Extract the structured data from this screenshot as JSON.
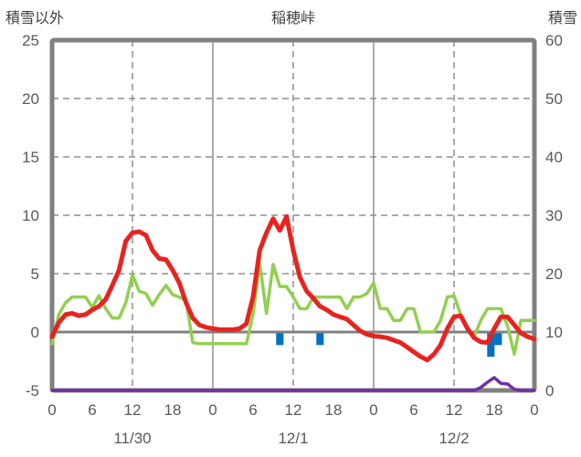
{
  "header": {
    "left_axis_title": "積雪以外",
    "chart_title": "稲穂峠",
    "right_axis_title": "積雪"
  },
  "chart_data": {
    "type": "line",
    "title": "稲穂峠",
    "station": "稲穂峠",
    "x_axis": {
      "unit": "hour",
      "start_hour": 0,
      "end_hour": 72,
      "tick_interval_hours": 6,
      "tick_labels": [
        "0",
        "6",
        "12",
        "18",
        "0",
        "6",
        "12",
        "18",
        "0",
        "6",
        "12",
        "18",
        "0"
      ],
      "day_labels": [
        {
          "label": "11/30",
          "center_hour": 12
        },
        {
          "label": "12/1",
          "center_hour": 36
        },
        {
          "label": "12/2",
          "center_hour": 60
        }
      ],
      "solid_gridline_hours": [
        24,
        48
      ],
      "dashed_gridline_hours": [
        12,
        36,
        60
      ]
    },
    "left_axis": {
      "title": "積雪以外",
      "min": -5,
      "max": 25,
      "tick_step": 5,
      "tick_labels": [
        "25",
        "20",
        "15",
        "10",
        "5",
        "0",
        "-5"
      ],
      "dashed_gridline_values": [
        20,
        15,
        10,
        5
      ],
      "zero_line_value": 0
    },
    "right_axis": {
      "title": "積雪",
      "min": 0,
      "max": 60,
      "tick_step": 10,
      "tick_labels": [
        "60",
        "50",
        "40",
        "30",
        "20",
        "10",
        "0"
      ]
    },
    "series": [
      {
        "name": "green-line",
        "axis": "left",
        "color": "#92d050",
        "width": 3.5,
        "values": [
          -1.0,
          1.5,
          2.5,
          3.0,
          3.0,
          3.0,
          2.1,
          3.1,
          2.0,
          1.2,
          1.2,
          2.5,
          4.9,
          3.5,
          3.3,
          2.3,
          3.2,
          4.0,
          3.2,
          3.0,
          2.7,
          -0.9,
          -1.0,
          -1.0,
          -1.0,
          -1.0,
          -1.0,
          -1.0,
          -1.0,
          -1.0,
          1.5,
          5.9,
          1.6,
          5.8,
          3.9,
          3.9,
          3.0,
          2.0,
          2.0,
          3.0,
          3.0,
          3.0,
          3.0,
          3.0,
          2.0,
          3.0,
          3.0,
          3.3,
          4.2,
          2.0,
          2.0,
          1.0,
          1.0,
          2.0,
          2.0,
          0.0,
          0.0,
          0.0,
          1.0,
          3.0,
          3.1,
          1.5,
          0.3,
          -0.4,
          1.0,
          2.0,
          2.0,
          2.0,
          0.5,
          -1.9,
          1.0,
          1.0,
          1.0
        ]
      },
      {
        "name": "temperature-red",
        "axis": "left",
        "color": "#e8231f",
        "width": 5,
        "values": [
          -0.4,
          0.8,
          1.5,
          1.6,
          1.4,
          1.5,
          1.9,
          2.2,
          2.8,
          4.0,
          5.3,
          7.8,
          8.5,
          8.6,
          8.3,
          7.0,
          6.3,
          6.2,
          5.3,
          4.2,
          2.5,
          1.2,
          0.6,
          0.4,
          0.3,
          0.2,
          0.2,
          0.2,
          0.3,
          0.7,
          3.0,
          7.0,
          8.5,
          9.7,
          8.7,
          9.9,
          7.0,
          4.7,
          3.5,
          2.9,
          2.2,
          1.9,
          1.5,
          1.3,
          1.1,
          0.6,
          0.1,
          -0.2,
          -0.35,
          -0.4,
          -0.5,
          -0.7,
          -0.9,
          -1.3,
          -1.7,
          -2.1,
          -2.4,
          -1.9,
          -1.1,
          0.3,
          1.3,
          1.4,
          0.3,
          -0.5,
          -0.85,
          -0.9,
          0.3,
          1.3,
          1.3,
          0.6,
          -0.1,
          -0.4,
          -0.6
        ]
      },
      {
        "name": "snow-depth-purple",
        "axis": "right",
        "color": "#7030a0",
        "width": 3.5,
        "values": [
          0,
          0,
          0,
          0,
          0,
          0,
          0,
          0,
          0,
          0,
          0,
          0,
          0,
          0,
          0,
          0,
          0,
          0,
          0,
          0,
          0,
          0,
          0,
          0,
          0,
          0,
          0,
          0,
          0,
          0,
          0,
          0,
          0,
          0,
          0,
          0,
          0,
          0,
          0,
          0,
          0,
          0,
          0,
          0,
          0,
          0,
          0,
          0,
          0,
          0,
          0,
          0,
          0,
          0,
          0,
          0,
          0,
          0,
          0,
          0,
          0,
          0,
          0,
          0,
          0.5,
          1.4,
          2.2,
          1.2,
          1.1,
          0.2,
          0,
          0,
          0
        ]
      }
    ],
    "bars": {
      "name": "precipitation-blue",
      "color": "#0070c0",
      "axis": "left",
      "baseline_value": 0,
      "direction": "down",
      "bar_width_hours": 1.1,
      "points": [
        {
          "hour": 34,
          "depth": 1
        },
        {
          "hour": 40,
          "depth": 1
        },
        {
          "hour": 65.5,
          "depth": 2
        },
        {
          "hour": 66.6,
          "depth": 1
        }
      ]
    },
    "style": {
      "border_color": "#808080",
      "grid_color": "#8f8f8f",
      "zero_line_color": "#808080",
      "tick_text_color": "#595959",
      "legend_position": "none",
      "grid": true
    }
  }
}
